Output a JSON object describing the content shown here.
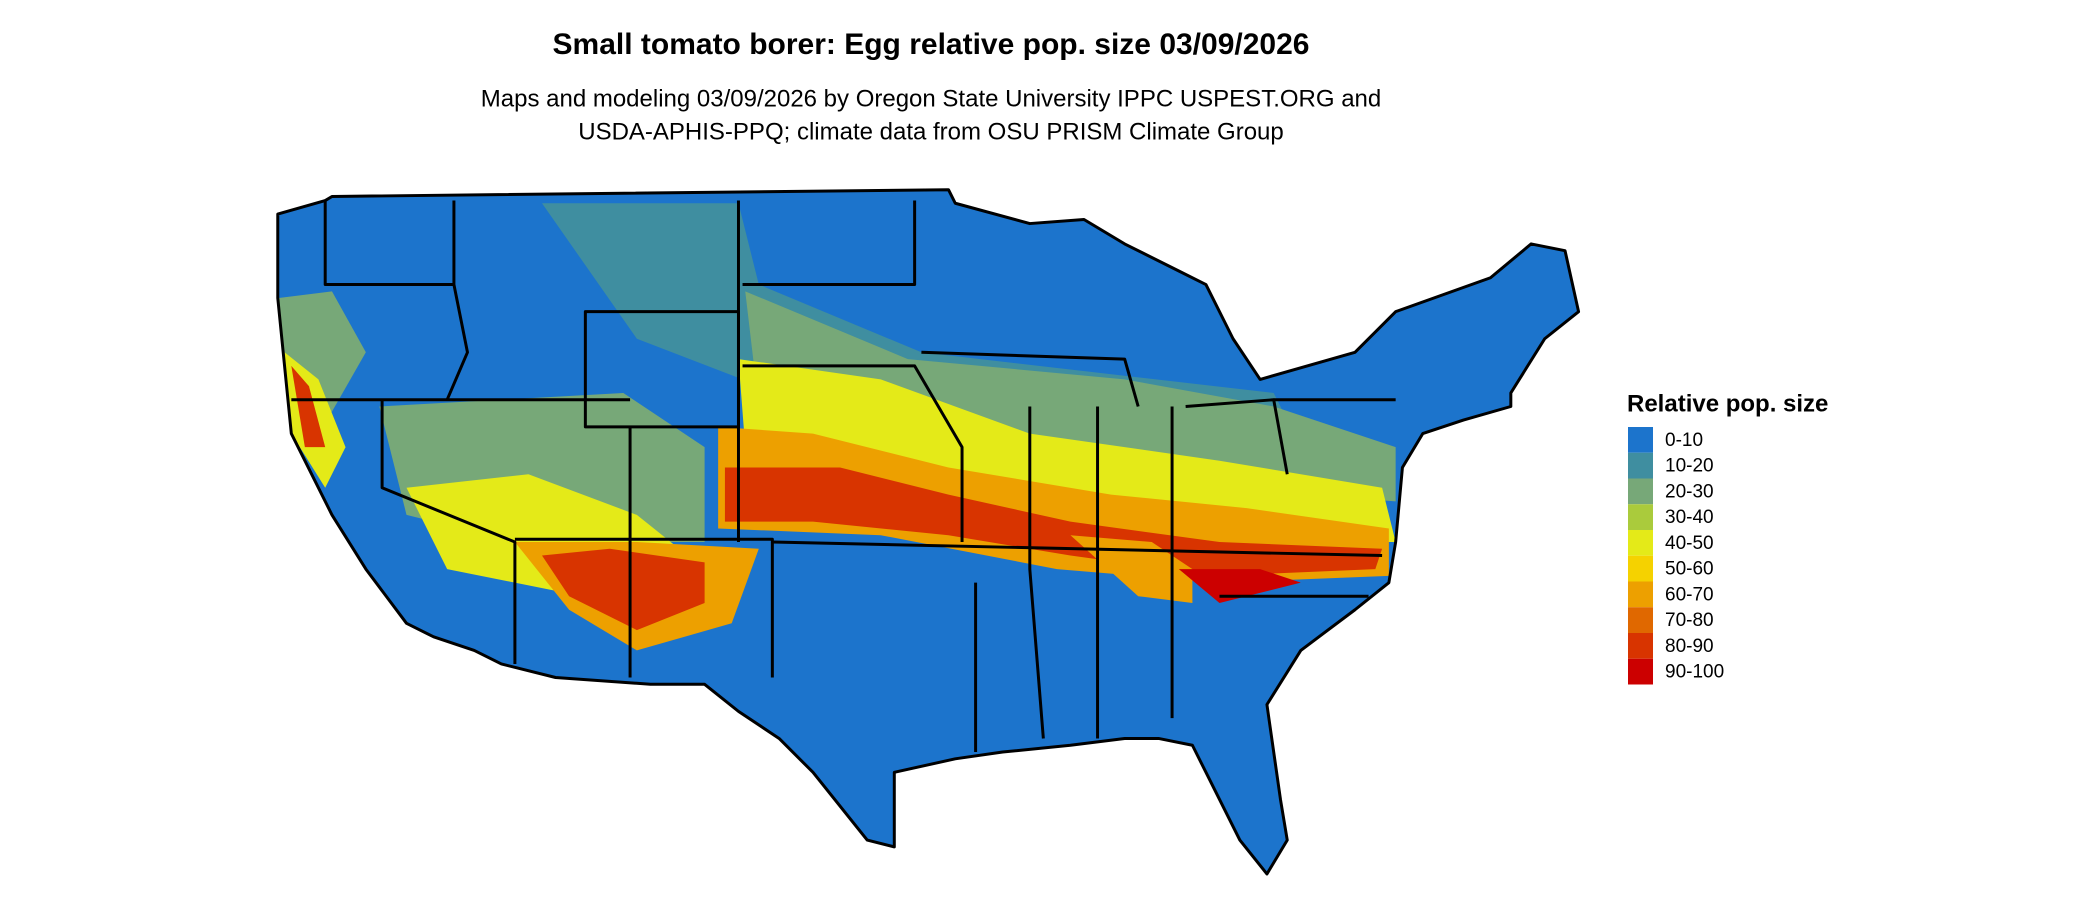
{
  "title": "Small tomato borer: Egg relative pop. size 03/09/2026",
  "subtitle": [
    "Maps and modeling 03/09/2026 by Oregon State University IPPC USPEST.ORG and",
    "USDA-APHIS-PPQ; climate data from OSU PRISM Climate Group"
  ],
  "legend": {
    "title": "Relative pop. size",
    "items": [
      {
        "label": "0-10",
        "color": "#1c74cc"
      },
      {
        "label": "10-20",
        "color": "#3f8ea0"
      },
      {
        "label": "20-30",
        "color": "#77a878"
      },
      {
        "label": "30-40",
        "color": "#aacb3c"
      },
      {
        "label": "40-50",
        "color": "#e4ea18"
      },
      {
        "label": "50-60",
        "color": "#f5d200"
      },
      {
        "label": "60-70",
        "color": "#eda000"
      },
      {
        "label": "70-80",
        "color": "#e06800"
      },
      {
        "label": "80-90",
        "color": "#d83400"
      },
      {
        "label": "90-100",
        "color": "#cc0000"
      }
    ]
  }
}
